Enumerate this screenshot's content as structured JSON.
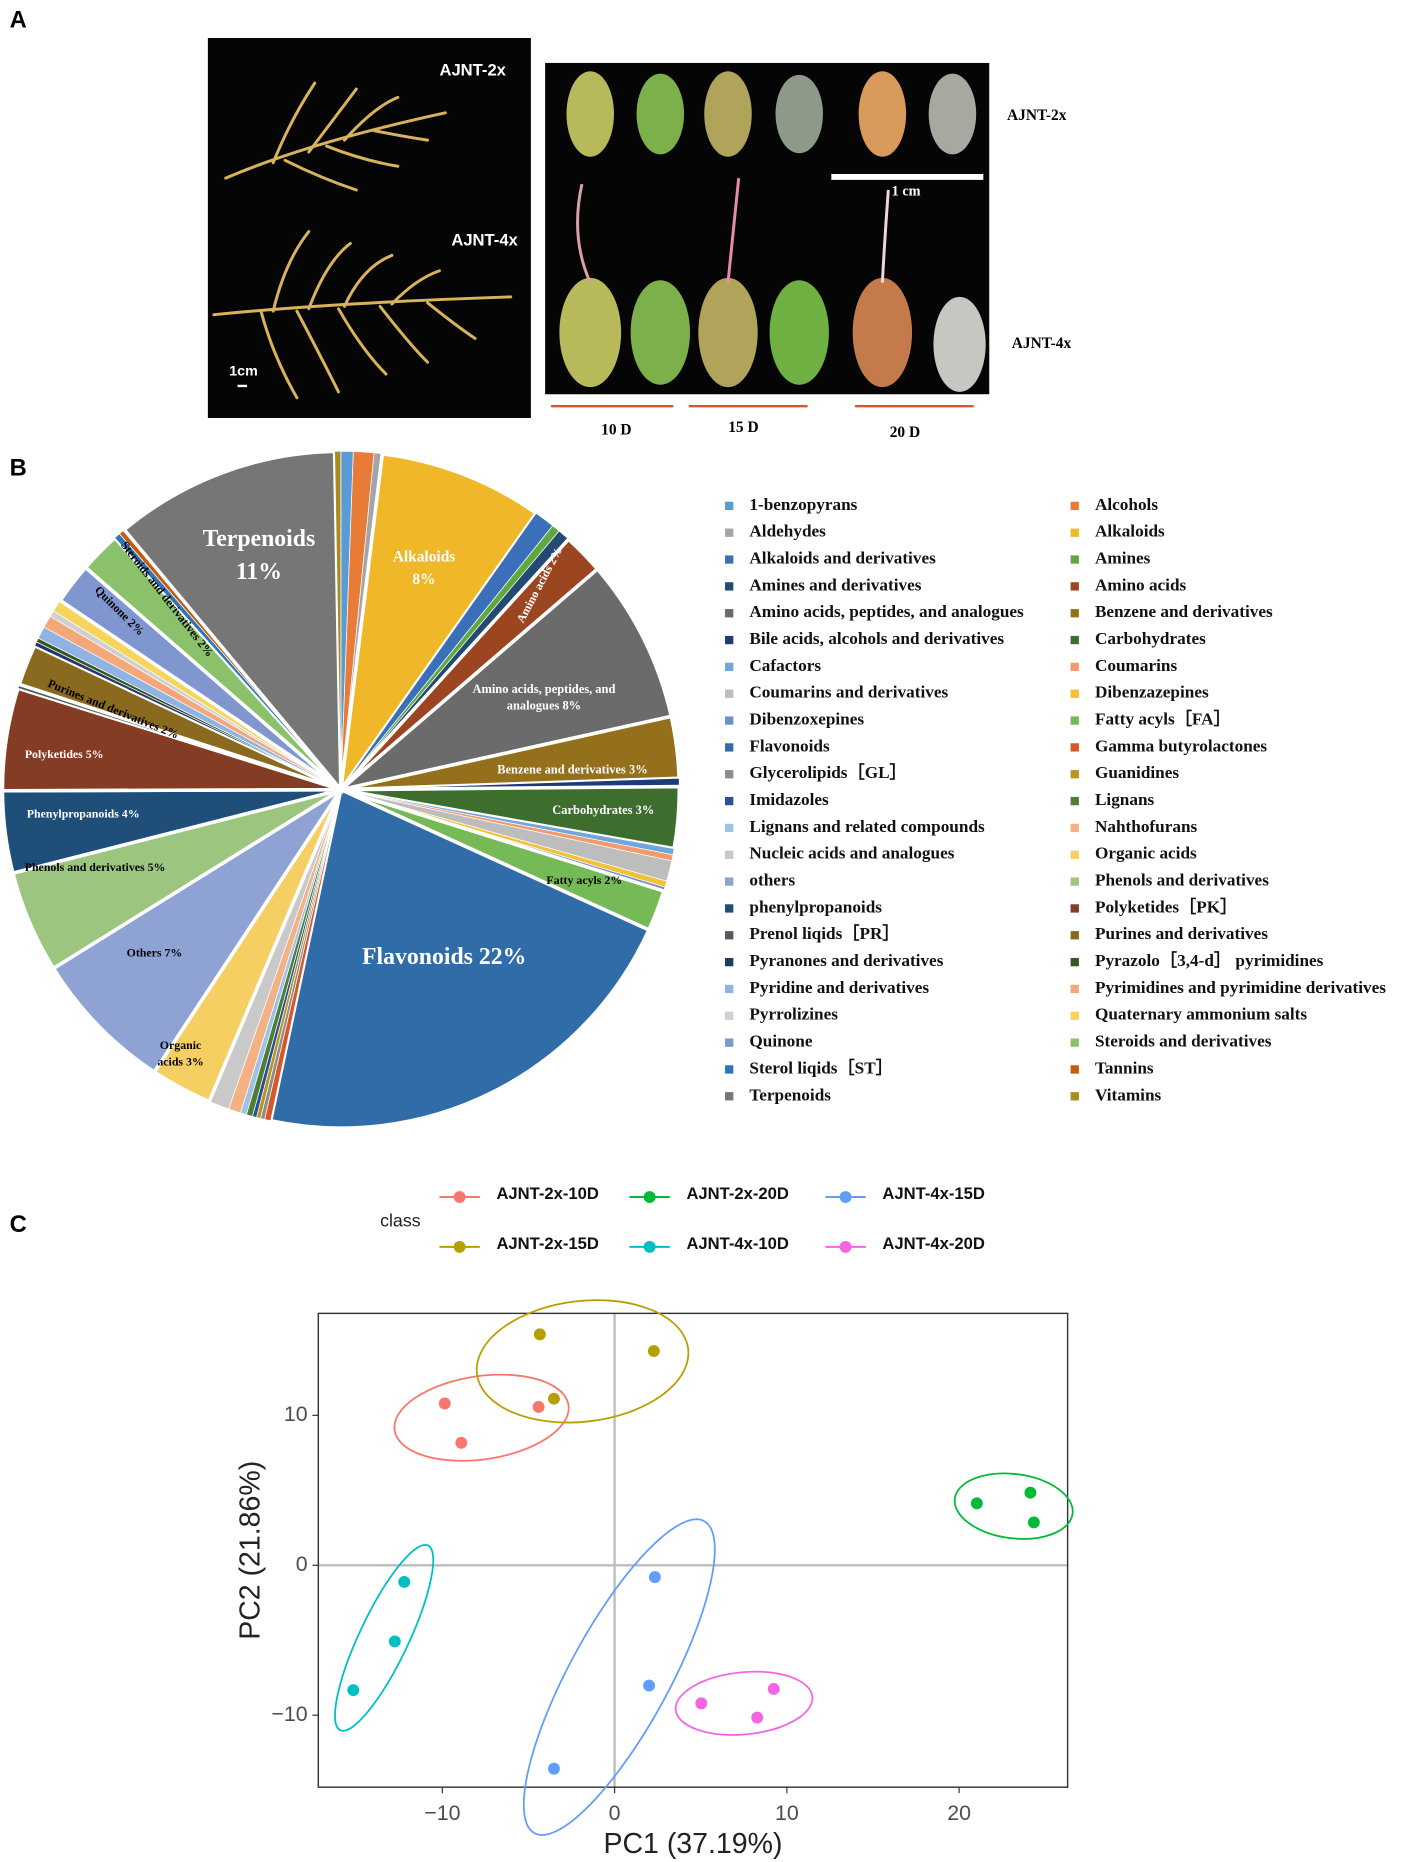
{
  "panel_labels": [
    "A",
    "B",
    "C"
  ],
  "panel_a": {
    "left_photo": {
      "labels": [
        "AJNT-2x",
        "AJNT-4x"
      ],
      "scale": "1cm"
    },
    "right_photo": {
      "scale": "1 cm",
      "row_labels": [
        "AJNT-2x",
        "AJNT-4x"
      ],
      "stage_labels": [
        "10 D",
        "15 D",
        "20 D"
      ]
    }
  },
  "chart_data": [
    {
      "type": "pie",
      "categories": [
        "1-benzopyrans",
        "Alcohols",
        "Aldehydes",
        "Alkaloids",
        "Alkaloids and derivatives",
        "Amines",
        "Amines and derivatives",
        "Amino acids",
        "Amino acids, peptides, and analogues",
        "Benzene and derivatives",
        "Bile acids, alcohols and derivatives",
        "Carbohydrates",
        "Cafactors",
        "Coumarins",
        "Coumarins and derivatives",
        "Dibenzazepines",
        "Dibenzoxepines",
        "Fatty acyls［FA］",
        "Flavonoids",
        "Gamma butyrolactones",
        "Glycerolipids［GL］",
        "Guanidines",
        "Imidazoles",
        "Lignans",
        "Lignans and related compounds",
        "Nahthofurans",
        "Nucleic acids and analogues",
        "Organic acids",
        "others",
        "Phenols and derivatives",
        "phenylpropanoids",
        "Polyketides［PK］",
        "Prenol liqids［PR］",
        "Purines and derivatives",
        "Pyranones and derivatives",
        "Pyrazolo［3,4-d］ pyrimidines",
        "Pyridine and derivatives",
        "Pyrimidines and pyrimidine derivatives",
        "Pyrrolizines",
        "Quaternary ammonium salts",
        "Quinone",
        "Steroids and derivatives",
        "Sterol liqids［ST］",
        "Tannins",
        "Terpenoids",
        "Vitamins"
      ],
      "values": [
        0.6,
        1.0,
        0.4,
        8,
        1.0,
        0.4,
        0.6,
        2,
        8,
        3,
        0.4,
        3,
        0.3,
        0.3,
        1.0,
        0.3,
        0.2,
        2,
        22,
        0.3,
        0.2,
        0.2,
        0.2,
        0.3,
        0.3,
        0.6,
        1.0,
        3,
        7,
        5,
        4,
        5,
        0.2,
        2,
        0.2,
        0.2,
        0.6,
        0.6,
        0.3,
        0.6,
        2,
        2,
        0.3,
        0.3,
        11,
        0.3
      ],
      "colors": [
        "#5b9bd5",
        "#e97b39",
        "#a5a5a5",
        "#f0b829",
        "#3b6fba",
        "#5fa83f",
        "#244a73",
        "#9c4521",
        "#6b6b6b",
        "#94701c",
        "#1f3a78",
        "#3e6e2e",
        "#6fa7dc",
        "#f19a6c",
        "#bdbdbd",
        "#f3c233",
        "#6d8fcf",
        "#76b957",
        "#2f6ca8",
        "#d4582a",
        "#8c8c8c",
        "#b8951f",
        "#2a4f94",
        "#4e7e36",
        "#9dc3e6",
        "#f4b183",
        "#c9c9c9",
        "#f5cf62",
        "#8ea3d3",
        "#9cc680",
        "#1f4e79",
        "#843c24",
        "#595959",
        "#8a6a1e",
        "#203864",
        "#375623",
        "#8fb4e3",
        "#f4a77a",
        "#d0d0d0",
        "#f6d55c",
        "#7f96cf",
        "#8cc16b",
        "#2e75b6",
        "#c55a11",
        "#767676",
        "#a98b1f"
      ],
      "value_labels": [
        null,
        null,
        null,
        [
          "Alkaloids",
          "8%"
        ],
        null,
        null,
        null,
        [
          "Amino acids 2%"
        ],
        [
          "Amino acids, peptides, and",
          "analogues 8%"
        ],
        [
          "Benzene and derivatives 3%"
        ],
        null,
        [
          "Carbohydrates 3%"
        ],
        null,
        null,
        null,
        null,
        null,
        [
          "Fatty acyls 2%"
        ],
        [
          "Flavonoids 22%"
        ],
        null,
        null,
        null,
        null,
        null,
        null,
        null,
        null,
        [
          "Organic",
          "acids 3%"
        ],
        [
          "Others 7%"
        ],
        [
          "Phenols and derivatives 5%"
        ],
        [
          "Phenylpropanoids 4%"
        ],
        [
          "Polyketides 5%"
        ],
        null,
        [
          "Purines and derivatives 2%"
        ],
        null,
        null,
        null,
        null,
        null,
        null,
        [
          "Quinone 2%"
        ],
        [
          "Steroids and derivatives 2%"
        ],
        null,
        null,
        [
          "Terpenoids",
          "11%"
        ],
        null
      ]
    },
    {
      "type": "scatter",
      "legend_title": "class",
      "x_label": "PC1 (37.19%)",
      "y_label": "PC2 (21.86%)",
      "xlim": [
        -17.2,
        26.3
      ],
      "ylim": [
        -14.8,
        16.8
      ],
      "xticks": [
        {
          "value": -10,
          "label": "−10"
        },
        0,
        10,
        20
      ],
      "yticks": [
        {
          "value": -10,
          "label": "−10"
        },
        0,
        10
      ],
      "zero_lines": true,
      "ellipses": true,
      "series": [
        {
          "name": "AJNT-2x-10D",
          "color": "#f8766d",
          "x": [
            -9.86,
            -8.9,
            -4.41
          ],
          "values": [
            10.79,
            8.17,
            10.56
          ]
        },
        {
          "name": "AJNT-2x-15D",
          "color": "#b79f00",
          "x": [
            -4.34,
            2.28,
            -3.52
          ],
          "values": [
            15.4,
            14.29,
            11.11
          ]
        },
        {
          "name": "AJNT-2x-20D",
          "color": "#00ba38",
          "x": [
            21.03,
            24.14,
            24.34
          ],
          "values": [
            4.13,
            4.84,
            2.86
          ]
        },
        {
          "name": "AJNT-4x-10D",
          "color": "#00bfc4",
          "x": [
            -12.21,
            -12.76,
            -15.17
          ],
          "values": [
            -1.11,
            -5.08,
            -8.33
          ]
        },
        {
          "name": "AJNT-4x-15D",
          "color": "#619cff",
          "x": [
            2.34,
            2.0,
            -3.52
          ],
          "values": [
            -0.79,
            -8.02,
            -13.57
          ]
        },
        {
          "name": "AJNT-4x-20D",
          "color": "#f564e3",
          "x": [
            5.03,
            9.24,
            8.28
          ],
          "values": [
            -9.21,
            -8.25,
            -10.16
          ]
        }
      ]
    }
  ]
}
